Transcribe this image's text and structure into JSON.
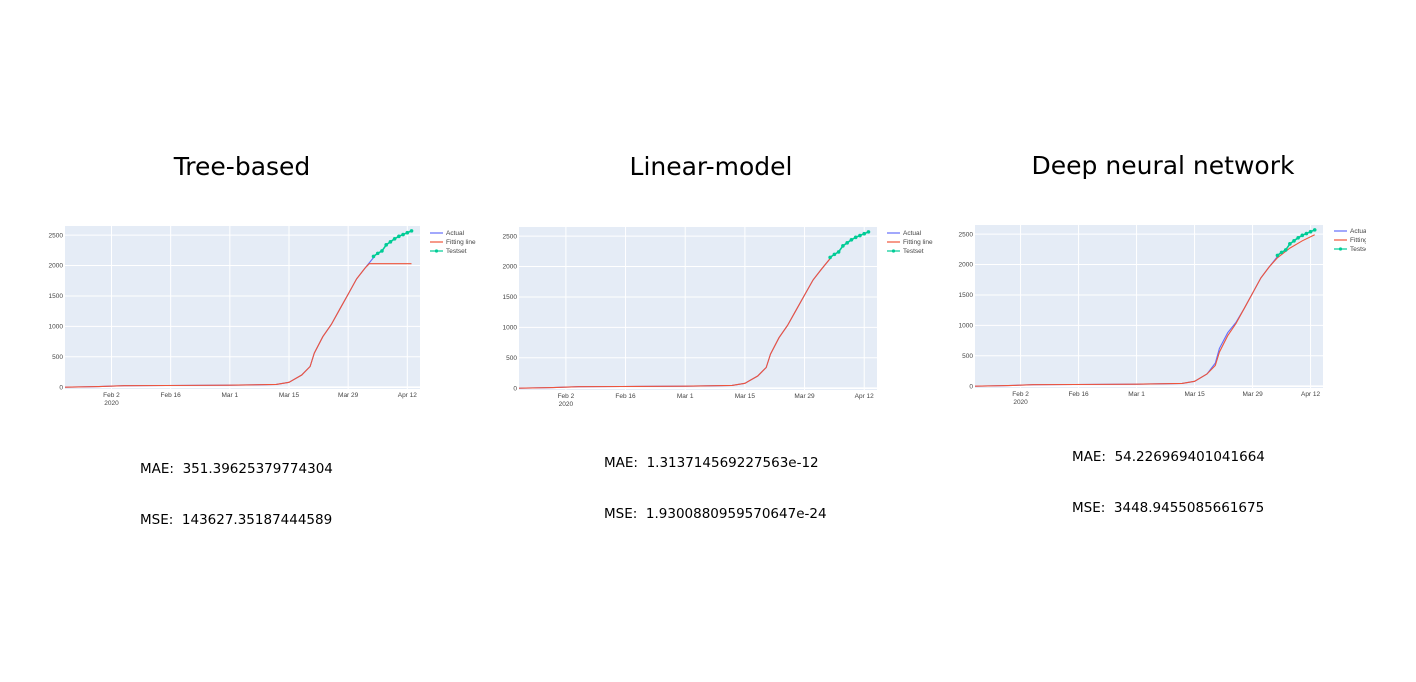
{
  "panels": [
    {
      "title": "Tree-based",
      "metrics": {
        "mae_label": "MAE:",
        "mae_value": "351.39625379774304",
        "mse_label": "MSE:",
        "mse_value": "143627.35187444589"
      }
    },
    {
      "title": "Linear-model",
      "metrics": {
        "mae_label": "MAE:",
        "mae_value": "1.313714569227563e-12",
        "mse_label": "MSE:",
        "mse_value": "1.9300880959570647e-24"
      }
    },
    {
      "title": "Deep neural network",
      "metrics": {
        "mae_label": "MAE:",
        "mae_value": "54.226969401041664",
        "mse_label": "MSE:",
        "mse_value": "3448.9455085661675"
      }
    }
  ],
  "colors": {
    "plot_bg": "#e5ecf6",
    "grid": "#ffffff",
    "actual": "#636efa",
    "fitting": "#ef553b",
    "testset": "#00cc96",
    "tick_text": "#444444"
  },
  "chart_data": [
    {
      "type": "line",
      "title": "Tree-based",
      "x_axis": {
        "type": "date",
        "range": [
          "2020-01-22",
          "2020-04-15"
        ],
        "tick_labels": [
          "Feb 2\n2020",
          "Feb 16",
          "Mar 1",
          "Mar 15",
          "Mar 29",
          "Apr 12"
        ]
      },
      "y_axis": {
        "range": [
          -30,
          2650
        ],
        "tick_labels": [
          "0",
          "500",
          "1000",
          "1500",
          "2000",
          "2500"
        ]
      },
      "grid": true,
      "legend": {
        "position": "top-right",
        "entries": [
          "Actual",
          "Fitting line",
          "Testset"
        ]
      },
      "series": [
        {
          "name": "Actual",
          "x": [
            "2020-01-22",
            "2020-01-30",
            "2020-02-05",
            "2020-02-15",
            "2020-03-01",
            "2020-03-12",
            "2020-03-15",
            "2020-03-18",
            "2020-03-20",
            "2020-03-21",
            "2020-03-23",
            "2020-03-25",
            "2020-03-27",
            "2020-03-29",
            "2020-03-31",
            "2020-04-02",
            "2020-04-04"
          ],
          "y": [
            0,
            10,
            25,
            28,
            32,
            45,
            80,
            200,
            340,
            560,
            830,
            1030,
            1280,
            1530,
            1780,
            1960,
            2130
          ]
        },
        {
          "name": "Fitting line",
          "x": [
            "2020-01-22",
            "2020-01-30",
            "2020-02-05",
            "2020-02-15",
            "2020-03-01",
            "2020-03-12",
            "2020-03-15",
            "2020-03-18",
            "2020-03-20",
            "2020-03-21",
            "2020-03-23",
            "2020-03-25",
            "2020-03-27",
            "2020-03-29",
            "2020-03-31",
            "2020-04-02",
            "2020-04-03",
            "2020-04-13"
          ],
          "y": [
            0,
            10,
            25,
            28,
            32,
            45,
            80,
            200,
            340,
            560,
            830,
            1030,
            1280,
            1530,
            1780,
            1960,
            2030,
            2030
          ]
        },
        {
          "name": "Testset",
          "x": [
            "2020-04-04",
            "2020-04-05",
            "2020-04-06",
            "2020-04-07",
            "2020-04-08",
            "2020-04-09",
            "2020-04-10",
            "2020-04-11",
            "2020-04-12",
            "2020-04-13"
          ],
          "y": [
            2150,
            2200,
            2240,
            2340,
            2390,
            2440,
            2480,
            2510,
            2540,
            2570
          ]
        }
      ]
    },
    {
      "type": "line",
      "title": "Linear-model",
      "x_axis": {
        "type": "date",
        "range": [
          "2020-01-22",
          "2020-04-15"
        ],
        "tick_labels": [
          "Feb 2\n2020",
          "Feb 16",
          "Mar 1",
          "Mar 15",
          "Mar 29",
          "Apr 12"
        ]
      },
      "y_axis": {
        "range": [
          -30,
          2650
        ],
        "tick_labels": [
          "0",
          "500",
          "1000",
          "1500",
          "2000",
          "2500"
        ]
      },
      "grid": true,
      "legend": {
        "position": "top-right",
        "entries": [
          "Actual",
          "Fitting line",
          "Testset"
        ]
      },
      "series": [
        {
          "name": "Actual",
          "x": [
            "2020-01-22",
            "2020-01-30",
            "2020-02-05",
            "2020-02-15",
            "2020-03-01",
            "2020-03-12",
            "2020-03-15",
            "2020-03-18",
            "2020-03-20",
            "2020-03-21",
            "2020-03-23",
            "2020-03-25",
            "2020-03-27",
            "2020-03-29",
            "2020-03-31",
            "2020-04-02",
            "2020-04-04"
          ],
          "y": [
            0,
            10,
            25,
            28,
            32,
            45,
            80,
            200,
            340,
            560,
            830,
            1030,
            1280,
            1530,
            1780,
            1960,
            2130
          ]
        },
        {
          "name": "Fitting line",
          "x": [
            "2020-01-22",
            "2020-01-30",
            "2020-02-05",
            "2020-02-15",
            "2020-03-01",
            "2020-03-12",
            "2020-03-15",
            "2020-03-18",
            "2020-03-20",
            "2020-03-21",
            "2020-03-23",
            "2020-03-25",
            "2020-03-27",
            "2020-03-29",
            "2020-03-31",
            "2020-04-02",
            "2020-04-04"
          ],
          "y": [
            0,
            10,
            25,
            28,
            32,
            45,
            80,
            200,
            340,
            560,
            830,
            1030,
            1280,
            1530,
            1780,
            1960,
            2130
          ]
        },
        {
          "name": "Testset",
          "x": [
            "2020-04-04",
            "2020-04-05",
            "2020-04-06",
            "2020-04-07",
            "2020-04-08",
            "2020-04-09",
            "2020-04-10",
            "2020-04-11",
            "2020-04-12",
            "2020-04-13"
          ],
          "y": [
            2150,
            2200,
            2240,
            2340,
            2390,
            2440,
            2480,
            2510,
            2540,
            2570
          ]
        }
      ]
    },
    {
      "type": "line",
      "title": "Deep neural network",
      "x_axis": {
        "type": "date",
        "range": [
          "2020-01-22",
          "2020-04-15"
        ],
        "tick_labels": [
          "Feb 2\n2020",
          "Feb 16",
          "Mar 1",
          "Mar 15",
          "Mar 29",
          "Apr 12"
        ]
      },
      "y_axis": {
        "range": [
          -30,
          2650
        ],
        "tick_labels": [
          "0",
          "500",
          "1000",
          "1500",
          "2000",
          "2500"
        ]
      },
      "grid": true,
      "legend": {
        "position": "top-right",
        "entries": [
          "Actual",
          "Fitting line",
          "Testset"
        ]
      },
      "series": [
        {
          "name": "Actual",
          "x": [
            "2020-01-22",
            "2020-01-30",
            "2020-02-05",
            "2020-02-15",
            "2020-03-01",
            "2020-03-12",
            "2020-03-15",
            "2020-03-18",
            "2020-03-20",
            "2020-03-21",
            "2020-03-23",
            "2020-03-25",
            "2020-03-27",
            "2020-03-29",
            "2020-03-31",
            "2020-04-02",
            "2020-04-04"
          ],
          "y": [
            0,
            10,
            25,
            28,
            32,
            45,
            80,
            200,
            380,
            620,
            880,
            1050,
            1280,
            1530,
            1780,
            1960,
            2130
          ]
        },
        {
          "name": "Fitting line",
          "x": [
            "2020-01-22",
            "2020-01-30",
            "2020-02-05",
            "2020-02-15",
            "2020-03-01",
            "2020-03-12",
            "2020-03-15",
            "2020-03-18",
            "2020-03-20",
            "2020-03-21",
            "2020-03-23",
            "2020-03-25",
            "2020-03-27",
            "2020-03-29",
            "2020-03-31",
            "2020-04-02",
            "2020-04-04",
            "2020-04-07",
            "2020-04-10",
            "2020-04-13"
          ],
          "y": [
            0,
            10,
            25,
            28,
            32,
            45,
            80,
            200,
            340,
            560,
            830,
            1030,
            1280,
            1530,
            1780,
            1960,
            2110,
            2270,
            2390,
            2490
          ]
        },
        {
          "name": "Testset",
          "x": [
            "2020-04-04",
            "2020-04-05",
            "2020-04-06",
            "2020-04-07",
            "2020-04-08",
            "2020-04-09",
            "2020-04-10",
            "2020-04-11",
            "2020-04-12",
            "2020-04-13"
          ],
          "y": [
            2150,
            2200,
            2240,
            2340,
            2390,
            2440,
            2480,
            2510,
            2540,
            2570
          ]
        }
      ]
    }
  ]
}
